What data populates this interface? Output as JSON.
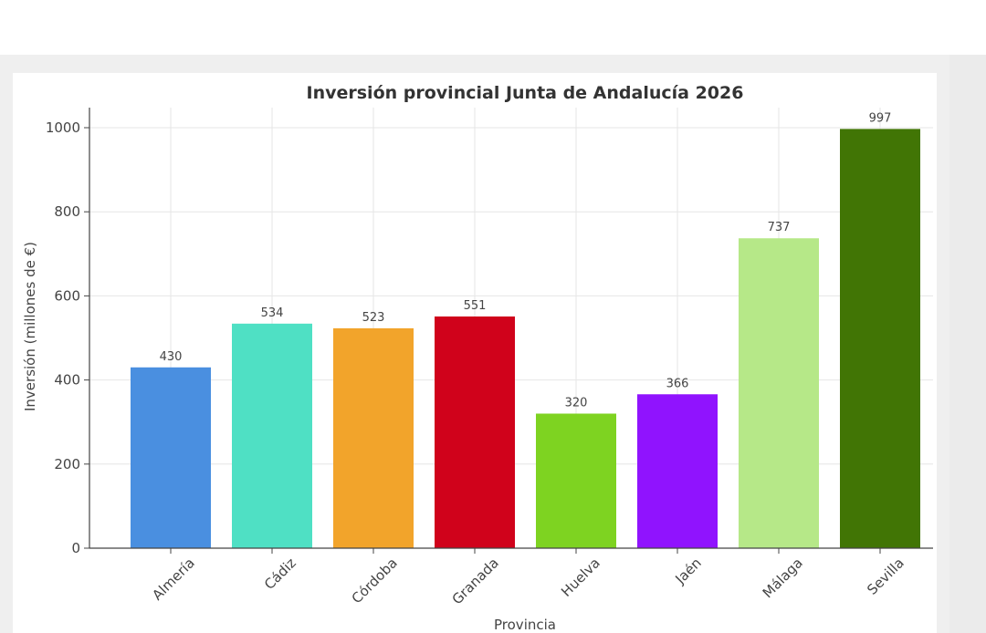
{
  "chart_data": {
    "type": "bar",
    "title": "Inversión provincial Junta de Andalucía 2026",
    "xlabel": "Provincia",
    "ylabel": "Inversión (millones de €)",
    "ylim": [
      0,
      1050
    ],
    "yticks": [
      0,
      200,
      400,
      600,
      800,
      1000
    ],
    "grid": true,
    "categories": [
      "Almería",
      "Cádiz",
      "Córdoba",
      "Granada",
      "Huelva",
      "Jaén",
      "Málaga",
      "Sevilla"
    ],
    "values": [
      430,
      534,
      523,
      551,
      320,
      366,
      737,
      997
    ],
    "colors": [
      "#4a8fe0",
      "#4fe0c4",
      "#f2a42b",
      "#d0021b",
      "#7ed321",
      "#9013fe",
      "#b6e888",
      "#417505"
    ]
  }
}
